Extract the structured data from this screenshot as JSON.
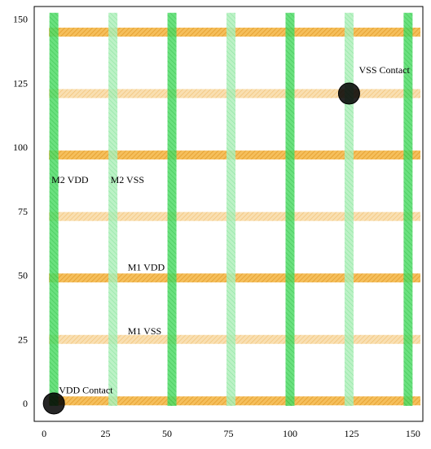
{
  "chart_data": {
    "type": "scatter",
    "title": "",
    "xlabel": "",
    "ylabel": "",
    "xlim": [
      -4,
      154
    ],
    "ylim": [
      -7,
      155
    ],
    "xticks": [
      "0",
      "25",
      "50",
      "75",
      "100",
      "125",
      "150"
    ],
    "yticks": [
      "0",
      "25",
      "50",
      "75",
      "100",
      "125",
      "150"
    ],
    "grid": false,
    "colors": {
      "m1_vdd": "#f0a020",
      "m1_vss": "#f5c87a",
      "m2_vdd": "#30d050",
      "m2_vss": "#90e8a0",
      "contact_fill": "#000000",
      "contact_edge": "#000000",
      "frame": "#000000"
    },
    "m1_vdd_rails_y": [
      1,
      49,
      97,
      145
    ],
    "m1_vss_rails_y": [
      25,
      73,
      121
    ],
    "m2_vdd_rails_x": [
      4,
      52,
      100,
      148
    ],
    "m2_vss_rails_x": [
      28,
      76,
      124
    ],
    "rail_span": [
      0,
      150
    ],
    "contacts": [
      {
        "name": "VDD Contact",
        "x": 4,
        "y": 0
      },
      {
        "name": "VSS Contact",
        "x": 124,
        "y": 121
      }
    ],
    "annotations": [
      {
        "text": "VDD Contact",
        "x": 6,
        "y": 4
      },
      {
        "text": "VSS Contact",
        "x": 128,
        "y": 129
      },
      {
        "text": "M2 VDD",
        "x": 3,
        "y": 86
      },
      {
        "text": "M2 VSS",
        "x": 27,
        "y": 86
      },
      {
        "text": "M1 VDD",
        "x": 34,
        "y": 52
      },
      {
        "text": "M1 VSS",
        "x": 34,
        "y": 27
      }
    ]
  }
}
